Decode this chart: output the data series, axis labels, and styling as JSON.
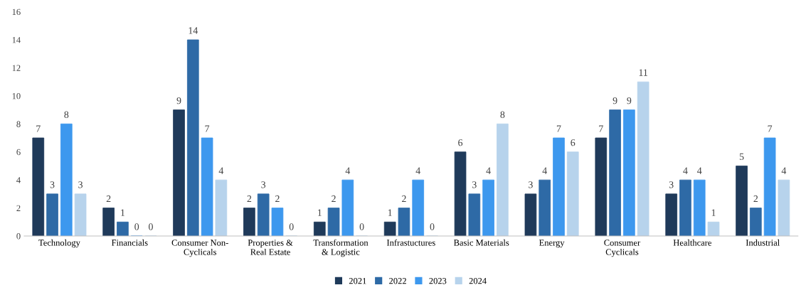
{
  "chart_data": {
    "type": "bar",
    "categories": [
      "Technology",
      "Financials",
      "Consumer Non-\nCyclicals",
      "Properties &\nReal Estate",
      "Transformation\n& Logistic",
      "Infrastuctures",
      "Basic Materials",
      "Energy",
      "Consumer\nCyclicals",
      "Healthcare",
      "Industrial"
    ],
    "series": [
      {
        "name": "2021",
        "color": "#1f3a5a",
        "values": [
          7,
          2,
          9,
          2,
          1,
          1,
          6,
          3,
          7,
          3,
          5
        ]
      },
      {
        "name": "2022",
        "color": "#2e6aa6",
        "values": [
          3,
          1,
          14,
          3,
          2,
          2,
          3,
          4,
          9,
          4,
          2
        ]
      },
      {
        "name": "2023",
        "color": "#3d98ee",
        "values": [
          8,
          0,
          7,
          2,
          4,
          4,
          4,
          7,
          9,
          4,
          7
        ]
      },
      {
        "name": "2024",
        "color": "#b7d3ec",
        "values": [
          3,
          0,
          4,
          0,
          0,
          0,
          8,
          6,
          11,
          1,
          4
        ]
      }
    ],
    "ylim": [
      0,
      16
    ],
    "yticks": [
      0,
      2,
      4,
      6,
      8,
      10,
      12,
      14,
      16
    ],
    "data_labels": true,
    "legend": "bottom",
    "grid": false
  }
}
